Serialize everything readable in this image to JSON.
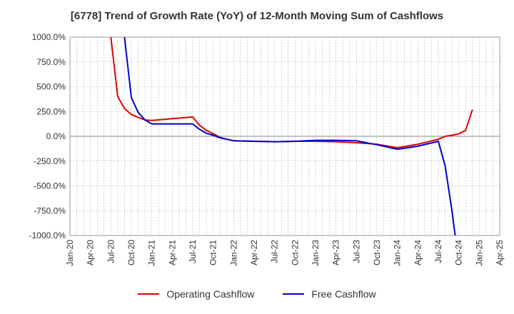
{
  "chart_data": {
    "type": "line",
    "title": "[6778]  Trend of Growth Rate (YoY) of 12-Month Moving Sum of Cashflows",
    "xlabel": "",
    "ylabel": "",
    "x_tick_labels": [
      "Jan-20",
      "Apr-20",
      "Jul-20",
      "Oct-20",
      "Jan-21",
      "Apr-21",
      "Jul-21",
      "Oct-21",
      "Jan-22",
      "Apr-22",
      "Jul-22",
      "Oct-22",
      "Jan-23",
      "Apr-23",
      "Jul-23",
      "Oct-23",
      "Jan-24",
      "Apr-24",
      "Jul-24",
      "Oct-24",
      "Jan-25",
      "Apr-25"
    ],
    "y_tick_labels": [
      "1000.0%",
      "750.0%",
      "500.0%",
      "250.0%",
      "0.0%",
      "-250.0%",
      "-500.0%",
      "-750.0%",
      "-1000.0%"
    ],
    "y_ticks": [
      1000,
      750,
      500,
      250,
      0,
      -250,
      -500,
      -750,
      -1000
    ],
    "ylim": [
      -1000,
      1000
    ],
    "grid": true,
    "legend_position": "bottom",
    "series": [
      {
        "name": "Operating Cashflow",
        "color": "#e00000",
        "points": [
          [
            "2020-07",
            1000
          ],
          [
            "2020-08",
            400
          ],
          [
            "2020-09",
            280
          ],
          [
            "2020-10",
            220
          ],
          [
            "2020-11",
            190
          ],
          [
            "2020-12",
            165
          ],
          [
            "2021-01",
            160
          ],
          [
            "2021-07",
            195
          ],
          [
            "2021-08",
            110
          ],
          [
            "2021-09",
            60
          ],
          [
            "2021-10",
            25
          ],
          [
            "2021-11",
            -10
          ],
          [
            "2021-12",
            -30
          ],
          [
            "2022-01",
            -45
          ],
          [
            "2022-04",
            -50
          ],
          [
            "2022-07",
            -55
          ],
          [
            "2022-10",
            -50
          ],
          [
            "2023-01",
            -50
          ],
          [
            "2023-04",
            -55
          ],
          [
            "2023-07",
            -65
          ],
          [
            "2023-10",
            -80
          ],
          [
            "2024-01",
            -115
          ],
          [
            "2024-04",
            -80
          ],
          [
            "2024-07",
            -30
          ],
          [
            "2024-08",
            0
          ],
          [
            "2024-09",
            10
          ],
          [
            "2024-10",
            25
          ],
          [
            "2024-11",
            60
          ],
          [
            "2024-12",
            270
          ]
        ]
      },
      {
        "name": "Free Cashflow",
        "color": "#0000d0",
        "points": [
          [
            "2020-09",
            1000
          ],
          [
            "2020-10",
            390
          ],
          [
            "2020-11",
            240
          ],
          [
            "2020-12",
            165
          ],
          [
            "2021-01",
            125
          ],
          [
            "2021-07",
            125
          ],
          [
            "2021-08",
            70
          ],
          [
            "2021-09",
            30
          ],
          [
            "2021-10",
            10
          ],
          [
            "2021-11",
            -15
          ],
          [
            "2021-12",
            -30
          ],
          [
            "2022-01",
            -45
          ],
          [
            "2022-04",
            -50
          ],
          [
            "2022-07",
            -55
          ],
          [
            "2022-10",
            -50
          ],
          [
            "2023-01",
            -40
          ],
          [
            "2023-04",
            -40
          ],
          [
            "2023-07",
            -45
          ],
          [
            "2023-10",
            -85
          ],
          [
            "2024-01",
            -130
          ],
          [
            "2024-04",
            -100
          ],
          [
            "2024-07",
            -50
          ],
          [
            "2024-08",
            -300
          ],
          [
            "2024-09",
            -750
          ],
          [
            "2024-09-15",
            -1000
          ]
        ]
      }
    ]
  }
}
